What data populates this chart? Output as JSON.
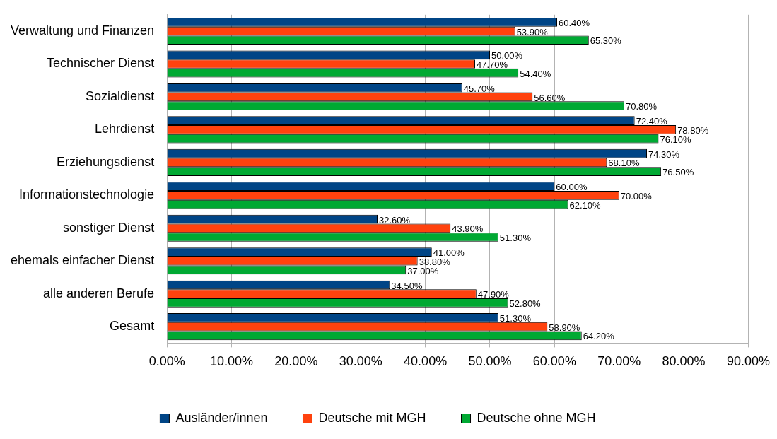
{
  "chart_data": {
    "type": "bar",
    "orientation": "horizontal",
    "categories": [
      "Verwaltung und Finanzen",
      "Technischer Dienst",
      "Sozialdienst",
      "Lehrdienst",
      "Erziehungsdienst",
      "Informationstechnologie",
      "sonstiger Dienst",
      "ehemals einfacher Dienst",
      "alle anderen Berufe",
      "Gesamt"
    ],
    "series": [
      {
        "name": "Ausländer/innen",
        "color": "#004586",
        "values": [
          60.4,
          50.0,
          45.7,
          72.4,
          74.3,
          60.0,
          32.6,
          41.0,
          34.5,
          51.3
        ],
        "value_labels": [
          "60.40%",
          "50.00%",
          "45.70%",
          "72.40%",
          "74.30%",
          "60.00%",
          "32.60%",
          "41.00%",
          "34.50%",
          "51.30%"
        ]
      },
      {
        "name": "Deutsche mit MGH",
        "color": "#ff420e",
        "values": [
          53.9,
          47.7,
          56.6,
          78.8,
          68.1,
          70.0,
          43.9,
          38.8,
          47.9,
          58.9
        ],
        "value_labels": [
          "53.90%",
          "47.70%",
          "56.60%",
          "78.80%",
          "68.10%",
          "70.00%",
          "43.90%",
          "38.80%",
          "47.90%",
          "58.90%"
        ]
      },
      {
        "name": "Deutsche ohne MGH",
        "color": "#00a933",
        "values": [
          65.3,
          54.4,
          70.8,
          76.1,
          76.5,
          62.1,
          51.3,
          37.0,
          52.8,
          64.2
        ],
        "value_labels": [
          "65.30%",
          "54.40%",
          "70.80%",
          "76.10%",
          "76.50%",
          "62.10%",
          "51.30%",
          "37.00%",
          "52.80%",
          "64.20%"
        ]
      }
    ],
    "xlim": [
      0,
      90
    ],
    "xticks": [
      {
        "value": 0,
        "label": "0.00%"
      },
      {
        "value": 10,
        "label": "10.00%"
      },
      {
        "value": 20,
        "label": "20.00%"
      },
      {
        "value": 30,
        "label": "30.00%"
      },
      {
        "value": 40,
        "label": "40.00%"
      },
      {
        "value": 50,
        "label": "50.00%"
      },
      {
        "value": 60,
        "label": "60.00%"
      },
      {
        "value": 70,
        "label": "70.00%"
      },
      {
        "value": 80,
        "label": "80.00%"
      },
      {
        "value": 90,
        "label": "90.00%"
      }
    ],
    "grid": "x",
    "legend": "bottom"
  }
}
